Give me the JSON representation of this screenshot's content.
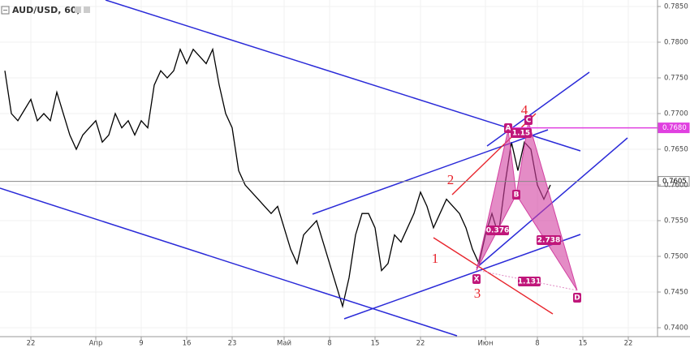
{
  "chart_data": {
    "type": "line",
    "title": "AUD/USD, 60,",
    "color": "#000000",
    "x": [
      -4,
      -3,
      -2,
      -1,
      0,
      1,
      2,
      3,
      4,
      5,
      6,
      7,
      8,
      9,
      10,
      11,
      12,
      13,
      14,
      15,
      16,
      17,
      18,
      19,
      20,
      21,
      22,
      23,
      24,
      25,
      26,
      27,
      28,
      29,
      30,
      31,
      32,
      33,
      34,
      35,
      36,
      37,
      38,
      39,
      40,
      41,
      42,
      43,
      44,
      45,
      46,
      47,
      48,
      49,
      50,
      51,
      52,
      53,
      54,
      55,
      56,
      57,
      58,
      59,
      60,
      61,
      62,
      63,
      64,
      65,
      66,
      67,
      68,
      69,
      70,
      71,
      72,
      73,
      74,
      75,
      76,
      77,
      78,
      79,
      80
    ],
    "values": [
      0.776,
      0.77,
      0.769,
      0.7705,
      0.772,
      0.769,
      0.77,
      0.769,
      0.773,
      0.77,
      0.767,
      0.765,
      0.767,
      0.768,
      0.769,
      0.766,
      0.767,
      0.77,
      0.768,
      0.769,
      0.767,
      0.769,
      0.768,
      0.774,
      0.776,
      0.775,
      0.776,
      0.779,
      0.777,
      0.779,
      0.778,
      0.777,
      0.779,
      0.774,
      0.77,
      0.768,
      0.762,
      0.76,
      0.759,
      0.758,
      0.757,
      0.756,
      0.757,
      0.754,
      0.751,
      0.749,
      0.753,
      0.754,
      0.755,
      0.752,
      0.749,
      0.746,
      0.743,
      0.747,
      0.753,
      0.756,
      0.756,
      0.754,
      0.748,
      0.749,
      0.753,
      0.752,
      0.754,
      0.756,
      0.759,
      0.757,
      0.754,
      0.756,
      0.758,
      0.757,
      0.756,
      0.754,
      0.751,
      0.749,
      0.753,
      0.756,
      0.753,
      0.76,
      0.766,
      0.762,
      0.766,
      0.765,
      0.76,
      0.758,
      0.76
    ],
    "xlim": [
      -4.75,
      96.5
    ],
    "xticks": [
      {
        "value": 0,
        "label": "22"
      },
      {
        "value": 10,
        "label": "Апр"
      },
      {
        "value": 17,
        "label": "9"
      },
      {
        "value": 24,
        "label": "16"
      },
      {
        "value": 31,
        "label": "23"
      },
      {
        "value": 39,
        "label": "Май"
      },
      {
        "value": 46,
        "label": "8"
      },
      {
        "value": 53,
        "label": "15"
      },
      {
        "value": 60,
        "label": "22"
      },
      {
        "value": 70,
        "label": "Июн"
      },
      {
        "value": 78,
        "label": "8"
      },
      {
        "value": 85,
        "label": "15"
      },
      {
        "value": 92,
        "label": "22"
      }
    ],
    "ylim": [
      0.73875,
      0.78591
    ],
    "yticks": [
      {
        "value": 0.74,
        "label": "0.7400"
      },
      {
        "value": 0.745,
        "label": "0.7450"
      },
      {
        "value": 0.75,
        "label": "0.7500"
      },
      {
        "value": 0.755,
        "label": "0.7550"
      },
      {
        "value": 0.76,
        "label": "0.7600"
      },
      {
        "value": 0.765,
        "label": "0.7650"
      },
      {
        "value": 0.77,
        "label": "0.7700"
      },
      {
        "value": 0.775,
        "label": "0.7750"
      },
      {
        "value": 0.78,
        "label": "0.7800"
      },
      {
        "value": 0.785,
        "label": "0.7850"
      }
    ],
    "price_lines": [
      {
        "value": 0.768,
        "label": "0.7680",
        "color": "#e040e0"
      },
      {
        "value": 0.7605,
        "label": "0.7605",
        "color": "#888888"
      }
    ],
    "points": [
      "X",
      "A",
      "B",
      "C",
      "D"
    ],
    "ratios": [
      "0.376",
      "1.15",
      "2.738",
      "1.131"
    ],
    "wave_numbers": [
      "1",
      "2",
      "3",
      "4"
    ]
  }
}
